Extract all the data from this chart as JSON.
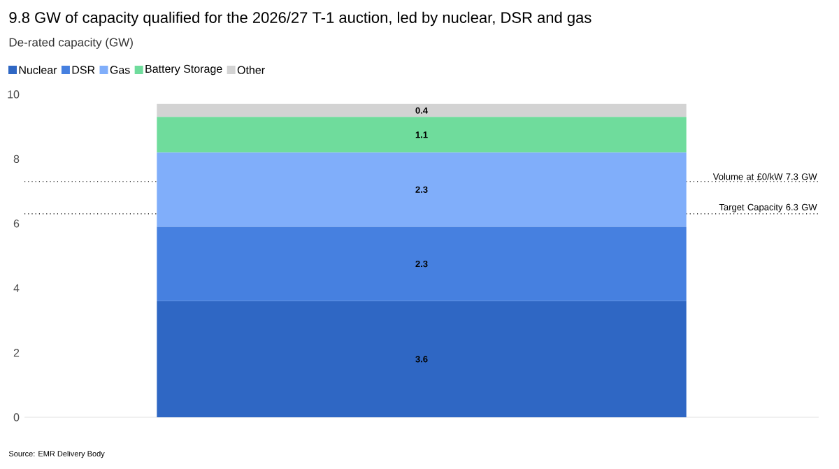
{
  "chart_data": {
    "type": "bar",
    "stacked": true,
    "title": "9.8 GW of capacity qualified for the 2026/27 T-1 auction, led by nuclear, DSR and gas",
    "subtitle": "De-rated capacity (GW)",
    "categories": [
      null
    ],
    "series": [
      {
        "name": "Nuclear",
        "color": "#2f67c4",
        "values": [
          3.6
        ]
      },
      {
        "name": "DSR",
        "color": "#4680e0",
        "values": [
          2.3
        ]
      },
      {
        "name": "Gas",
        "color": "#80aefa",
        "values": [
          2.3
        ]
      },
      {
        "name": "Battery Storage",
        "color": "#6fdc9c",
        "values": [
          1.1
        ]
      },
      {
        "name": "Other",
        "color": "#d3d3d3",
        "values": [
          0.4
        ]
      }
    ],
    "ylim": [
      0,
      10
    ],
    "yticks": [
      0,
      2,
      4,
      6,
      8,
      10
    ],
    "data_labels": true,
    "legend": "top left",
    "ref_lines": [
      {
        "axis": "y",
        "value": 7.3,
        "label": "Volume at £0/kW 7.3 GW",
        "line_style": "dotted"
      },
      {
        "axis": "y",
        "value": 6.3,
        "label": "Target Capacity 6.3 GW",
        "line_style": "dotted"
      }
    ],
    "annotations": [
      "Source: EMR Delivery Body"
    ]
  }
}
